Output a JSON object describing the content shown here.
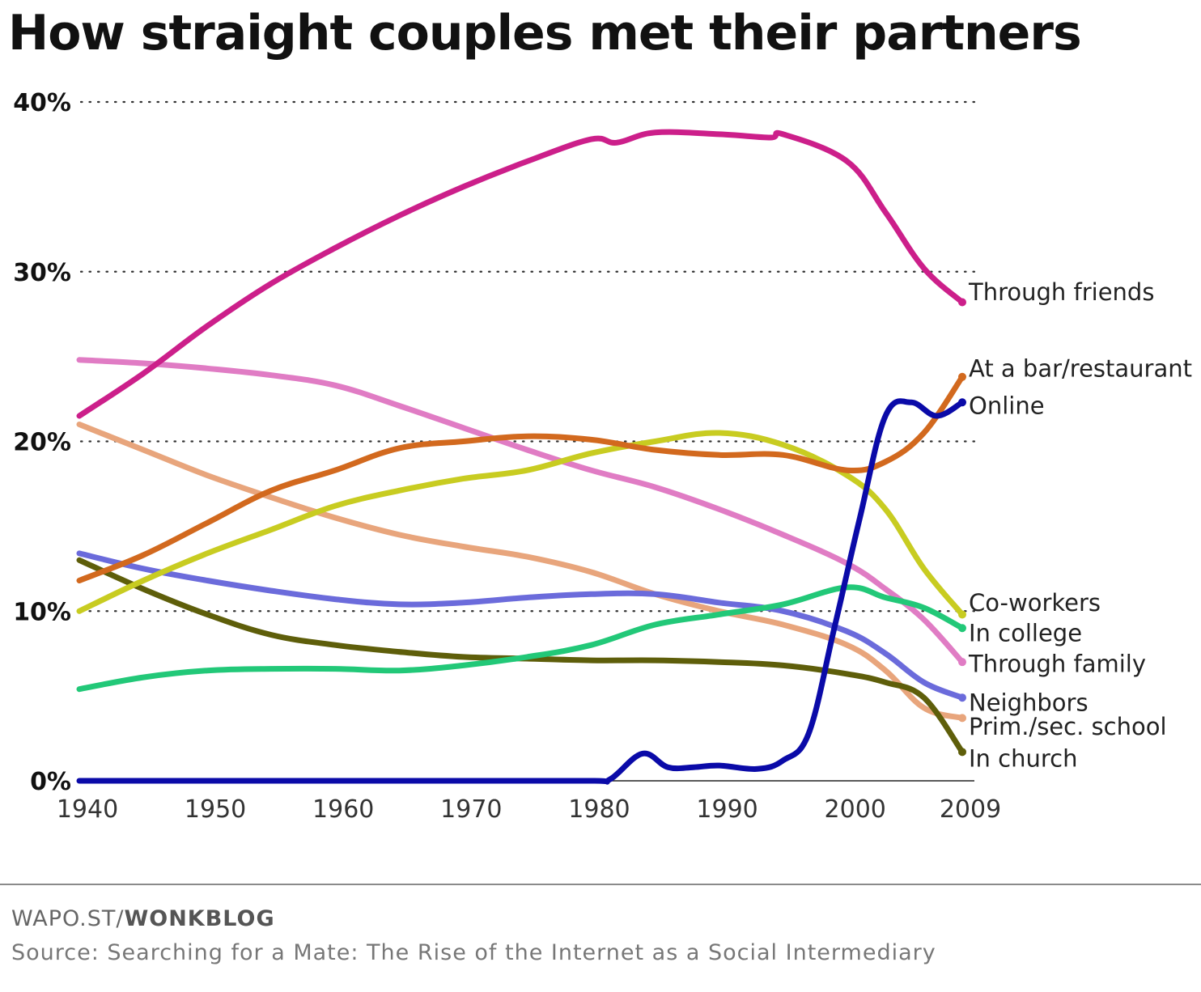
{
  "header": {
    "title": "How straight couples met their partners"
  },
  "footer": {
    "brand_prefix": "WAPO.ST/",
    "brand_name": "WONKBLOG",
    "source": "Source: Searching for a Mate: The Rise of the Internet as a Social Intermediary"
  },
  "chart_data": {
    "type": "line",
    "title": "How straight couples met their partners",
    "xlabel": "",
    "ylabel": "",
    "xlim": [
      1940,
      2009
    ],
    "ylim": [
      0,
      40
    ],
    "x_ticks": [
      {
        "value": 1940,
        "label": "1940"
      },
      {
        "value": 1950,
        "label": "1950"
      },
      {
        "value": 1960,
        "label": "1960"
      },
      {
        "value": 1970,
        "label": "1970"
      },
      {
        "value": 1980,
        "label": "1980"
      },
      {
        "value": 1990,
        "label": "1990"
      },
      {
        "value": 2000,
        "label": "2000"
      },
      {
        "value": 2009,
        "label": "2009"
      }
    ],
    "y_ticks": [
      {
        "value": 0,
        "label": "0%"
      },
      {
        "value": 10,
        "label": "10%"
      },
      {
        "value": 20,
        "label": "20%"
      },
      {
        "value": 30,
        "label": "30%"
      },
      {
        "value": 40,
        "label": "40%"
      }
    ],
    "grid": "dotted horizontal at 10%, 20%, 30%, 40%",
    "legend": "direct labels at right end of each line",
    "series": [
      {
        "name": "Through friends",
        "color": "#cc1f8a",
        "points": [
          [
            1940,
            21.5
          ],
          [
            1945,
            24
          ],
          [
            1950,
            26.8
          ],
          [
            1955,
            29.3
          ],
          [
            1960,
            31.4
          ],
          [
            1965,
            33.3
          ],
          [
            1970,
            35
          ],
          [
            1975,
            36.5
          ],
          [
            1980,
            37.8
          ],
          [
            1982,
            37.6
          ],
          [
            1985,
            38.2
          ],
          [
            1990,
            38.1
          ],
          [
            1994,
            37.9
          ],
          [
            1995,
            38.1
          ],
          [
            2000,
            36.5
          ],
          [
            2003,
            33.5
          ],
          [
            2006,
            30.2
          ],
          [
            2009,
            28.2
          ]
        ]
      },
      {
        "name": "At a bar/restaurant",
        "color": "#d2691e",
        "points": [
          [
            1940,
            11.8
          ],
          [
            1945,
            13.3
          ],
          [
            1950,
            15.2
          ],
          [
            1955,
            17.1
          ],
          [
            1960,
            18.3
          ],
          [
            1965,
            19.6
          ],
          [
            1970,
            20
          ],
          [
            1975,
            20.3
          ],
          [
            1980,
            20.1
          ],
          [
            1985,
            19.5
          ],
          [
            1990,
            19.2
          ],
          [
            1995,
            19.2
          ],
          [
            2000,
            18.3
          ],
          [
            2003,
            18.8
          ],
          [
            2006,
            20.5
          ],
          [
            2009,
            23.8
          ]
        ]
      },
      {
        "name": "Online",
        "color": "#0a0aa8",
        "points": [
          [
            1940,
            0
          ],
          [
            1950,
            0
          ],
          [
            1960,
            0
          ],
          [
            1970,
            0
          ],
          [
            1980,
            0
          ],
          [
            1981.5,
            0.1
          ],
          [
            1984,
            1.6
          ],
          [
            1986,
            0.8
          ],
          [
            1988,
            0.8
          ],
          [
            1990,
            0.9
          ],
          [
            1993,
            0.7
          ],
          [
            1995,
            1.2
          ],
          [
            1997,
            2.8
          ],
          [
            1999,
            9
          ],
          [
            2001,
            15.5
          ],
          [
            2003,
            21.5
          ],
          [
            2005,
            22.3
          ],
          [
            2007,
            21.5
          ],
          [
            2009,
            22.3
          ]
        ]
      },
      {
        "name": "Co-workers",
        "color": "#c8cc21",
        "points": [
          [
            1940,
            10
          ],
          [
            1945,
            11.8
          ],
          [
            1950,
            13.4
          ],
          [
            1955,
            14.8
          ],
          [
            1960,
            16.2
          ],
          [
            1965,
            17.1
          ],
          [
            1970,
            17.8
          ],
          [
            1975,
            18.3
          ],
          [
            1980,
            19.3
          ],
          [
            1985,
            20
          ],
          [
            1990,
            20.5
          ],
          [
            1995,
            19.8
          ],
          [
            2000,
            18
          ],
          [
            2003,
            16
          ],
          [
            2006,
            12.5
          ],
          [
            2009,
            9.8
          ]
        ]
      },
      {
        "name": "In college",
        "color": "#22c878",
        "points": [
          [
            1940,
            5.4
          ],
          [
            1945,
            6.1
          ],
          [
            1950,
            6.5
          ],
          [
            1955,
            6.6
          ],
          [
            1960,
            6.6
          ],
          [
            1965,
            6.5
          ],
          [
            1970,
            6.8
          ],
          [
            1975,
            7.3
          ],
          [
            1980,
            8
          ],
          [
            1985,
            9.2
          ],
          [
            1990,
            9.8
          ],
          [
            1995,
            10.4
          ],
          [
            2000,
            11.4
          ],
          [
            2003,
            10.8
          ],
          [
            2006,
            10.2
          ],
          [
            2009,
            9
          ]
        ]
      },
      {
        "name": "Through family",
        "color": "#e07cc4",
        "points": [
          [
            1940,
            24.8
          ],
          [
            1945,
            24.6
          ],
          [
            1950,
            24.3
          ],
          [
            1955,
            23.9
          ],
          [
            1960,
            23.3
          ],
          [
            1965,
            22.1
          ],
          [
            1970,
            20.8
          ],
          [
            1975,
            19.5
          ],
          [
            1980,
            18.3
          ],
          [
            1985,
            17.3
          ],
          [
            1990,
            16
          ],
          [
            1995,
            14.5
          ],
          [
            2000,
            12.8
          ],
          [
            2003,
            11.3
          ],
          [
            2006,
            9.5
          ],
          [
            2009,
            7
          ]
        ]
      },
      {
        "name": "Neighbors",
        "color": "#6b6bdb",
        "points": [
          [
            1940,
            13.4
          ],
          [
            1945,
            12.5
          ],
          [
            1950,
            11.8
          ],
          [
            1955,
            11.2
          ],
          [
            1960,
            10.7
          ],
          [
            1965,
            10.4
          ],
          [
            1970,
            10.5
          ],
          [
            1975,
            10.8
          ],
          [
            1980,
            11
          ],
          [
            1985,
            11
          ],
          [
            1990,
            10.5
          ],
          [
            1995,
            10
          ],
          [
            2000,
            8.8
          ],
          [
            2003,
            7.5
          ],
          [
            2006,
            5.8
          ],
          [
            2009,
            4.9
          ]
        ]
      },
      {
        "name": "Prim./sec. school",
        "color": "#e8a57c",
        "points": [
          [
            1940,
            21
          ],
          [
            1945,
            19.5
          ],
          [
            1950,
            18
          ],
          [
            1955,
            16.7
          ],
          [
            1960,
            15.5
          ],
          [
            1965,
            14.5
          ],
          [
            1970,
            13.8
          ],
          [
            1975,
            13.2
          ],
          [
            1980,
            12.3
          ],
          [
            1985,
            11
          ],
          [
            1990,
            10
          ],
          [
            1995,
            9.2
          ],
          [
            2000,
            8
          ],
          [
            2003,
            6.5
          ],
          [
            2006,
            4.3
          ],
          [
            2009,
            3.7
          ]
        ]
      },
      {
        "name": "In church",
        "color": "#5e5e0a",
        "points": [
          [
            1940,
            13
          ],
          [
            1945,
            11.3
          ],
          [
            1950,
            9.8
          ],
          [
            1955,
            8.6
          ],
          [
            1960,
            8
          ],
          [
            1965,
            7.6
          ],
          [
            1970,
            7.3
          ],
          [
            1975,
            7.2
          ],
          [
            1980,
            7.1
          ],
          [
            1985,
            7.1
          ],
          [
            1990,
            7
          ],
          [
            1995,
            6.8
          ],
          [
            2000,
            6.3
          ],
          [
            2003,
            5.8
          ],
          [
            2006,
            4.9
          ],
          [
            2009,
            1.7
          ]
        ]
      }
    ],
    "end_labels": [
      {
        "series": "Through friends",
        "label": "Through friends",
        "label_y": 28.8
      },
      {
        "series": "At a bar/restaurant",
        "label": "At a bar/restaurant",
        "label_y": 24.3
      },
      {
        "series": "Online",
        "label": "Online",
        "label_y": 22.1
      },
      {
        "series": "Co-workers",
        "label": "Co-workers",
        "label_y": 10.5
      },
      {
        "series": "In college",
        "label": "In college",
        "label_y": 8.7
      },
      {
        "series": "Through family",
        "label": "Through family",
        "label_y": 6.9
      },
      {
        "series": "Neighbors",
        "label": "Neighbors",
        "label_y": 4.6
      },
      {
        "series": "Prim./sec. school",
        "label": "Prim./sec. school",
        "label_y": 3.2
      },
      {
        "series": "In church",
        "label": "In church",
        "label_y": 1.3
      }
    ]
  }
}
